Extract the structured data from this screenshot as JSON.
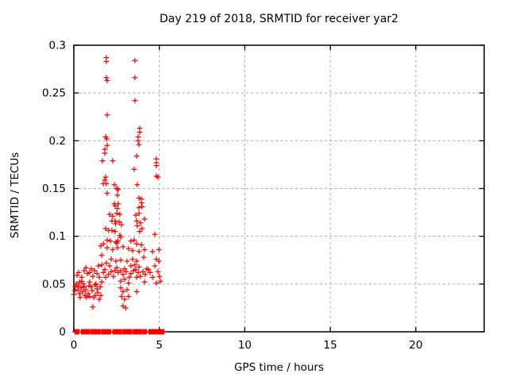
{
  "window": {
    "background": "#ffffff"
  },
  "chart_data": {
    "type": "scatter",
    "title": "Day 219 of 2018, SRMTID for receiver yar2",
    "xlabel": "GPS time / hours",
    "ylabel": "SRMTID / TECUs",
    "xlim": [
      0,
      24
    ],
    "ylim": [
      0,
      0.3
    ],
    "x_ticks": [
      0,
      5,
      10,
      15,
      20
    ],
    "x_tick_labels": [
      "0",
      "5",
      "10",
      "15",
      "20"
    ],
    "y_ticks": [
      0,
      0.05,
      0.1,
      0.15,
      0.2,
      0.25,
      0.3
    ],
    "y_tick_labels": [
      "0",
      "0.05",
      "0.1",
      "0.15",
      "0.2",
      "0.25",
      "0.3"
    ],
    "grid": true,
    "grid_style": "dashed",
    "legend": "none",
    "marker": "plus",
    "marker_color": "#ff0000",
    "axis_color": "#000000",
    "grid_color": "#a8a8a8",
    "series": [
      {
        "name": "SRMTID",
        "points": [
          [
            1.9,
            0.287
          ],
          [
            1.9,
            0.283
          ],
          [
            3.57,
            0.284
          ],
          [
            1.9,
            0.266
          ],
          [
            1.95,
            0.263
          ],
          [
            3.57,
            0.266
          ],
          [
            3.57,
            0.242
          ],
          [
            1.95,
            0.227
          ],
          [
            3.85,
            0.213
          ],
          [
            3.85,
            0.209
          ],
          [
            1.86,
            0.204
          ],
          [
            1.92,
            0.202
          ],
          [
            3.76,
            0.204
          ],
          [
            3.76,
            0.2
          ],
          [
            1.95,
            0.195
          ],
          [
            3.81,
            0.196
          ],
          [
            1.81,
            0.191
          ],
          [
            1.81,
            0.187
          ],
          [
            3.67,
            0.184
          ],
          [
            4.83,
            0.181
          ],
          [
            4.83,
            0.177
          ],
          [
            4.83,
            0.174
          ],
          [
            1.67,
            0.179
          ],
          [
            2.27,
            0.179
          ],
          [
            3.53,
            0.17
          ],
          [
            4.83,
            0.163
          ],
          [
            4.92,
            0.162
          ],
          [
            1.86,
            0.162
          ],
          [
            1.81,
            0.159
          ],
          [
            1.72,
            0.155
          ],
          [
            1.9,
            0.155
          ],
          [
            2.37,
            0.154
          ],
          [
            3.71,
            0.154
          ],
          [
            2.51,
            0.15
          ],
          [
            2.58,
            0.149
          ],
          [
            1.95,
            0.145
          ],
          [
            2.55,
            0.143
          ],
          [
            3.81,
            0.14
          ],
          [
            3.95,
            0.139
          ],
          [
            2.37,
            0.134
          ],
          [
            2.6,
            0.134
          ],
          [
            3.95,
            0.135
          ],
          [
            2.41,
            0.132
          ],
          [
            3.99,
            0.131
          ],
          [
            2.55,
            0.129
          ],
          [
            3.81,
            0.13
          ],
          [
            2.09,
            0.123
          ],
          [
            2.69,
            0.123
          ],
          [
            2.27,
            0.121
          ],
          [
            2.51,
            0.124
          ],
          [
            3.81,
            0.124
          ],
          [
            3.62,
            0.122
          ],
          [
            4.13,
            0.118
          ],
          [
            2.23,
            0.116
          ],
          [
            2.41,
            0.116
          ],
          [
            3.67,
            0.116
          ],
          [
            2.44,
            0.113
          ],
          [
            2.65,
            0.115
          ],
          [
            2.79,
            0.112
          ],
          [
            3.9,
            0.114
          ],
          [
            3.71,
            0.111
          ],
          [
            1.86,
            0.108
          ],
          [
            2.04,
            0.106
          ],
          [
            2.23,
            0.106
          ],
          [
            3.99,
            0.108
          ],
          [
            2.41,
            0.105
          ],
          [
            3.85,
            0.105
          ],
          [
            4.74,
            0.102
          ],
          [
            2.69,
            0.101
          ],
          [
            2.74,
            0.099
          ],
          [
            1.95,
            0.096
          ],
          [
            3.53,
            0.096
          ],
          [
            2.14,
            0.095
          ],
          [
            3.34,
            0.095
          ],
          [
            2.46,
            0.094
          ],
          [
            2.51,
            0.093
          ],
          [
            2.58,
            0.095
          ],
          [
            1.72,
            0.092
          ],
          [
            3.67,
            0.092
          ],
          [
            3.95,
            0.091
          ],
          [
            1.58,
            0.09
          ],
          [
            2.88,
            0.089
          ],
          [
            1.95,
            0.088
          ],
          [
            2.55,
            0.088
          ],
          [
            2.27,
            0.086
          ],
          [
            4.13,
            0.086
          ],
          [
            4.97,
            0.086
          ],
          [
            3.2,
            0.087
          ],
          [
            3.44,
            0.085
          ],
          [
            3.81,
            0.084
          ],
          [
            4.6,
            0.084
          ],
          [
            1.63,
            0.08
          ],
          [
            4.09,
            0.078
          ],
          [
            2.18,
            0.076
          ],
          [
            3.44,
            0.076
          ],
          [
            4.83,
            0.076
          ],
          [
            2.46,
            0.074
          ],
          [
            2.74,
            0.075
          ],
          [
            3.11,
            0.074
          ],
          [
            3.67,
            0.074
          ],
          [
            4.97,
            0.074
          ],
          [
            1.9,
            0.072
          ],
          [
            0.7,
            0.067
          ],
          [
            1.02,
            0.066
          ],
          [
            1.44,
            0.069
          ],
          [
            1.63,
            0.07
          ],
          [
            2.09,
            0.069
          ],
          [
            2.51,
            0.067
          ],
          [
            2.97,
            0.066
          ],
          [
            3.34,
            0.069
          ],
          [
            3.57,
            0.07
          ],
          [
            3.81,
            0.068
          ],
          [
            4.27,
            0.066
          ],
          [
            4.74,
            0.069
          ],
          [
            1.72,
            0.062
          ],
          [
            1.81,
            0.065
          ],
          [
            0.93,
            0.062
          ],
          [
            0.6,
            0.064
          ],
          [
            0.28,
            0.062
          ],
          [
            1.21,
            0.064
          ],
          [
            1.35,
            0.061
          ],
          [
            2.41,
            0.064
          ],
          [
            2.74,
            0.064
          ],
          [
            3.62,
            0.065
          ],
          [
            4.37,
            0.065
          ],
          [
            2.04,
            0.06
          ],
          [
            2.18,
            0.063
          ],
          [
            2.32,
            0.058
          ],
          [
            2.6,
            0.062
          ],
          [
            2.88,
            0.06
          ],
          [
            3.06,
            0.063
          ],
          [
            3.25,
            0.057
          ],
          [
            3.48,
            0.064
          ],
          [
            3.76,
            0.062
          ],
          [
            3.9,
            0.058
          ],
          [
            4.04,
            0.063
          ],
          [
            4.18,
            0.06
          ],
          [
            4.46,
            0.062
          ],
          [
            4.6,
            0.057
          ],
          [
            4.92,
            0.063
          ],
          [
            5.01,
            0.058
          ],
          [
            0.19,
            0.059
          ],
          [
            0.46,
            0.057
          ],
          [
            0.79,
            0.061
          ],
          [
            1.11,
            0.058
          ],
          [
            1.49,
            0.057
          ],
          [
            1.86,
            0.057
          ],
          [
            3.34,
            0.061
          ],
          [
            3.67,
            0.057
          ],
          [
            0.33,
            0.052
          ],
          [
            0.56,
            0.05
          ],
          [
            0.93,
            0.052
          ],
          [
            1.25,
            0.049
          ],
          [
            1.63,
            0.052
          ],
          [
            2.74,
            0.053
          ],
          [
            2.97,
            0.055
          ],
          [
            3.2,
            0.051
          ],
          [
            4.13,
            0.052
          ],
          [
            4.83,
            0.051
          ],
          [
            5.06,
            0.053
          ],
          [
            0.14,
            0.05
          ],
          [
            0.28,
            0.048
          ],
          [
            0.47,
            0.053
          ],
          [
            0.88,
            0.048
          ],
          [
            1.3,
            0.05
          ],
          [
            1.54,
            0.047
          ],
          [
            0.6,
            0.047
          ],
          [
            0.09,
            0.047
          ],
          [
            0.42,
            0.046
          ],
          [
            0.7,
            0.044
          ],
          [
            1.02,
            0.047
          ],
          [
            1.35,
            0.045
          ],
          [
            2.74,
            0.046
          ],
          [
            2.88,
            0.042
          ],
          [
            3.11,
            0.044
          ],
          [
            3.67,
            0.042
          ],
          [
            0.05,
            0.043
          ],
          [
            0.23,
            0.044
          ],
          [
            0.51,
            0.042
          ],
          [
            1.07,
            0.043
          ],
          [
            1.4,
            0.041
          ],
          [
            0.02,
            0.039
          ],
          [
            0.33,
            0.04
          ],
          [
            0.65,
            0.038
          ],
          [
            0.93,
            0.037
          ],
          [
            1.25,
            0.038
          ],
          [
            1.49,
            0.034
          ],
          [
            2.79,
            0.037
          ],
          [
            2.97,
            0.034
          ],
          [
            3.2,
            0.037
          ],
          [
            0.37,
            0.036
          ],
          [
            0.74,
            0.036
          ],
          [
            0.84,
            0.04
          ],
          [
            1.16,
            0.036
          ],
          [
            1.58,
            0.038
          ],
          [
            1.11,
            0.026
          ],
          [
            2.88,
            0.027
          ],
          [
            3.02,
            0.025
          ]
        ]
      }
    ],
    "zero_row_segments": [
      [
        0.06,
        0.32
      ],
      [
        0.44,
        0.92
      ],
      [
        1.0,
        1.56
      ],
      [
        1.64,
        2.18
      ],
      [
        2.28,
        2.76
      ],
      [
        2.84,
        3.4
      ],
      [
        3.48,
        3.96
      ],
      [
        4.04,
        4.26
      ],
      [
        4.38,
        5.28
      ]
    ],
    "zero_row_step_hours": 0.04,
    "zero_row_value": 0
  }
}
